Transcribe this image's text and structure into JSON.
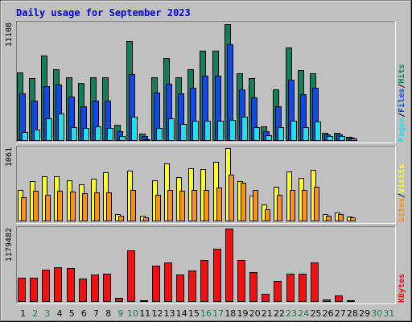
{
  "chart_data": {
    "type": "bar",
    "title": "Daily usage for September 2023",
    "categories": [
      "1",
      "2",
      "3",
      "4",
      "5",
      "6",
      "7",
      "8",
      "9",
      "10",
      "11",
      "12",
      "13",
      "14",
      "15",
      "16",
      "17",
      "18",
      "19",
      "20",
      "21",
      "22",
      "23",
      "24",
      "25",
      "26",
      "27",
      "28",
      "29",
      "30",
      "31"
    ],
    "weekend_days": [
      "2",
      "3",
      "9",
      "10",
      "16",
      "17",
      "23",
      "24",
      "30",
      "31"
    ],
    "colors": {
      "hits": "#157e5c",
      "files": "#0f4ae8",
      "pages": "#22dff0",
      "visits": "#ffff20",
      "sites": "#ff9010",
      "kbytes": "#f01010",
      "weekday_label": "#000000",
      "weekend_label": "#1a7a48",
      "title": "#0000cc",
      "panel_bg": "#c0c0c0",
      "frame_bg": "#c0c0c0"
    },
    "panels": [
      {
        "id": "hits-files-pages",
        "ymax_label": "11108",
        "ymax": 11108,
        "right_labels": [
          "Pages",
          "/",
          "Files",
          "/",
          "Hits"
        ],
        "right_label_colors": [
          "#22dff0",
          "#000000",
          "#0f4ae8",
          "#000000",
          "#157e5c"
        ],
        "series": [
          {
            "name": "Hits",
            "values": [
              6500,
              5900,
              8100,
              6800,
              6000,
              5500,
              6000,
              6000,
              1500,
              9400,
              680,
              6000,
              7800,
              6000,
              6800,
              8500,
              8500,
              11000,
              6400,
              5900,
              1400,
              4900,
              8800,
              6700,
              6400,
              750,
              750,
              380,
              70,
              70,
              70
            ]
          },
          {
            "name": "Files",
            "values": [
              4500,
              3800,
              5200,
              5300,
              4200,
              3300,
              3800,
              3800,
              950,
              6300,
              420,
              4600,
              5400,
              4500,
              5000,
              6200,
              6200,
              9100,
              4900,
              4100,
              900,
              3300,
              5800,
              4400,
              5000,
              600,
              600,
              300,
              50,
              50,
              50
            ]
          },
          {
            "name": "Pages",
            "values": [
              850,
              1100,
              2100,
              2600,
              1300,
              1200,
              1400,
              1200,
              430,
              2300,
              180,
              1200,
              2100,
              1600,
              1900,
              1900,
              1900,
              2000,
              2300,
              1300,
              500,
              1300,
              1900,
              1300,
              1800,
              450,
              450,
              230,
              30,
              30,
              30
            ]
          }
        ]
      },
      {
        "id": "visits-sites",
        "ymax_label": "1061",
        "ymax": 1061,
        "right_labels": [
          "Sites",
          "/",
          "Visits"
        ],
        "right_label_colors": [
          "#ff9010",
          "#000000",
          "#ffff20"
        ],
        "series": [
          {
            "name": "Visits",
            "values": [
              450,
              580,
              650,
              650,
              590,
              540,
              620,
              710,
              110,
              740,
              80,
              600,
              840,
              640,
              770,
              760,
              860,
              1061,
              580,
              370,
              240,
              500,
              720,
              630,
              750,
              100,
              130,
              75,
              15,
              15,
              15
            ]
          },
          {
            "name": "Sites",
            "values": [
              350,
              440,
              380,
              440,
              430,
              410,
              420,
              420,
              80,
              450,
              60,
              380,
              460,
              440,
              460,
              460,
              490,
              680,
              560,
              460,
              180,
              380,
              460,
              460,
              500,
              80,
              100,
              60,
              10,
              10,
              10
            ]
          }
        ]
      },
      {
        "id": "kbytes",
        "ymax_label": "1179482",
        "ymax": 1179482,
        "right_labels": [
          "KBytes"
        ],
        "right_label_colors": [
          "#f01010"
        ],
        "series": [
          {
            "name": "KBytes",
            "values": [
              390000,
              390000,
              520000,
              560000,
              540000,
              370000,
              440000,
              450000,
              60000,
              830000,
              30000,
              580000,
              630000,
              440000,
              510000,
              670000,
              850000,
              1179482,
              670000,
              480000,
              130000,
              340000,
              460000,
              460000,
              630000,
              40000,
              100000,
              20000,
              10000,
              10000,
              10000
            ]
          }
        ]
      }
    ]
  }
}
